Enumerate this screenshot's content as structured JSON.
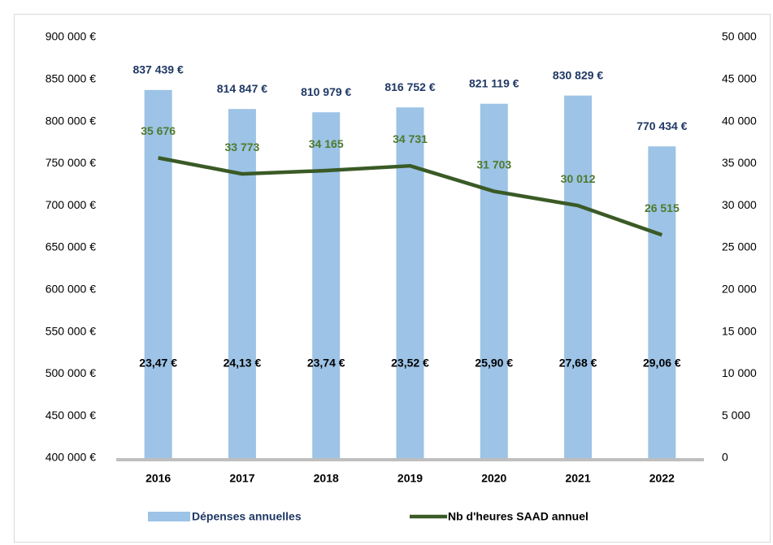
{
  "chart_data": {
    "type": "bar-line",
    "categories": [
      "2016",
      "2017",
      "2018",
      "2019",
      "2020",
      "2021",
      "2022"
    ],
    "series": [
      {
        "name": "Dépenses annuelles",
        "type": "bar",
        "color": "#9dc3e6",
        "values": [
          837439,
          814847,
          810979,
          816752,
          821119,
          830829,
          770434
        ],
        "value_labels": [
          "837 439 €",
          "814 847 €",
          "810 979 €",
          "816 752 €",
          "821 119 €",
          "830 829 €",
          "770 434 €"
        ]
      },
      {
        "name": "Nb d'heures SAAD annuel",
        "type": "line",
        "axis": "y2",
        "color": "#3a5a26",
        "values": [
          35676,
          33773,
          34165,
          34731,
          31703,
          30012,
          26515
        ],
        "value_labels": [
          "35 676",
          "33 773",
          "34 165",
          "34 731",
          "31 703",
          "30 012",
          "26 515"
        ]
      }
    ],
    "annotations": [
      "23,47 €",
      "24,13 €",
      "23,74 €",
      "23,52 €",
      "25,90 €",
      "27,68 €",
      "29,06 €"
    ],
    "ylim": [
      400000,
      900000
    ],
    "yticks": [
      {
        "value": 400000,
        "label": "400 000 €"
      },
      {
        "value": 450000,
        "label": "450 000 €"
      },
      {
        "value": 500000,
        "label": "500 000 €"
      },
      {
        "value": 550000,
        "label": "550 000 €"
      },
      {
        "value": 600000,
        "label": "600 000 €"
      },
      {
        "value": 650000,
        "label": "650 000 €"
      },
      {
        "value": 700000,
        "label": "700 000 €"
      },
      {
        "value": 750000,
        "label": "750 000 €"
      },
      {
        "value": 800000,
        "label": "800 000 €"
      },
      {
        "value": 850000,
        "label": "850 000 €"
      },
      {
        "value": 900000,
        "label": "900 000 €"
      }
    ],
    "y2lim": [
      0,
      50000
    ],
    "y2ticks": [
      0,
      {
        "value": 5000,
        "label": "5 000"
      },
      {
        "value": 10000,
        "label": "10 000"
      },
      {
        "value": 15000,
        "label": "15 000"
      },
      {
        "value": 20000,
        "label": "20 000"
      },
      {
        "value": 25000,
        "label": "25 000"
      },
      {
        "value": 30000,
        "label": "30 000"
      },
      {
        "value": 35000,
        "label": "35 000"
      },
      {
        "value": 40000,
        "label": "40 000"
      },
      {
        "value": 45000,
        "label": "45 000"
      },
      {
        "value": 50000,
        "label": "50 000"
      }
    ],
    "legend": "bottom"
  }
}
